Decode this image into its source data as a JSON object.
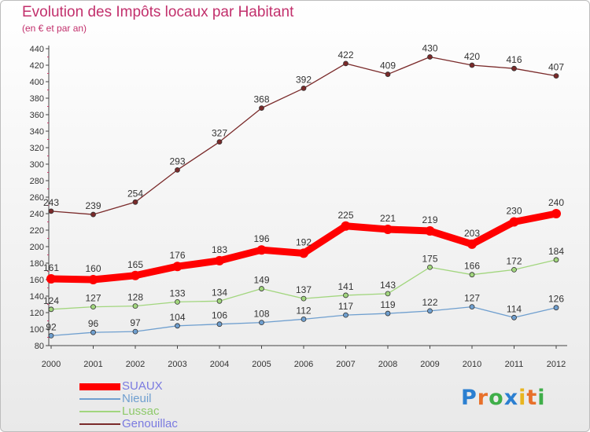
{
  "title": "Evolution des Impôts locaux par Habitant",
  "subtitle": "(en € et par an)",
  "logo": {
    "letters": [
      {
        "ch": "P",
        "color": "#2b7fd1"
      },
      {
        "ch": "r",
        "color": "#e8702a"
      },
      {
        "ch": "o",
        "color": "#3fae49"
      },
      {
        "ch": "x",
        "color": "#2b7fd1"
      },
      {
        "ch": "i",
        "color": "#e8b51f"
      },
      {
        "ch": "t",
        "color": "#e8702a"
      },
      {
        "ch": "i",
        "color": "#3fae49"
      }
    ]
  },
  "chart_data": {
    "type": "line",
    "x": [
      "2000",
      "2001",
      "2002",
      "2003",
      "2004",
      "2005",
      "2006",
      "2007",
      "2008",
      "2009",
      "2010",
      "2011",
      "2012"
    ],
    "ylim": [
      80,
      440
    ],
    "yticks": [
      80,
      100,
      120,
      140,
      160,
      180,
      200,
      220,
      240,
      260,
      280,
      300,
      320,
      340,
      360,
      380,
      400,
      420,
      440
    ],
    "grid": false,
    "legend_position": "bottom-left",
    "series": [
      {
        "name": "SUAUX",
        "color": "#ff0000",
        "label_color": "#7a7ae0",
        "values": [
          161,
          160,
          165,
          176,
          183,
          196,
          192,
          225,
          221,
          219,
          203,
          230,
          240
        ],
        "emphasis": true
      },
      {
        "name": "Nieuil",
        "color": "#6f9fcf",
        "label_color": "#6f9fcf",
        "values": [
          92,
          96,
          97,
          104,
          106,
          108,
          112,
          117,
          119,
          122,
          127,
          114,
          126
        ]
      },
      {
        "name": "Lussac",
        "color": "#a2d67e",
        "label_color": "#8ec96a",
        "values": [
          124,
          127,
          128,
          133,
          134,
          149,
          137,
          141,
          143,
          175,
          166,
          172,
          184
        ]
      },
      {
        "name": "Genouillac",
        "color": "#7a2a2a",
        "label_color": "#7a7ae0",
        "values": [
          243,
          239,
          254,
          293,
          327,
          368,
          392,
          422,
          409,
          430,
          420,
          416,
          407
        ]
      }
    ]
  }
}
